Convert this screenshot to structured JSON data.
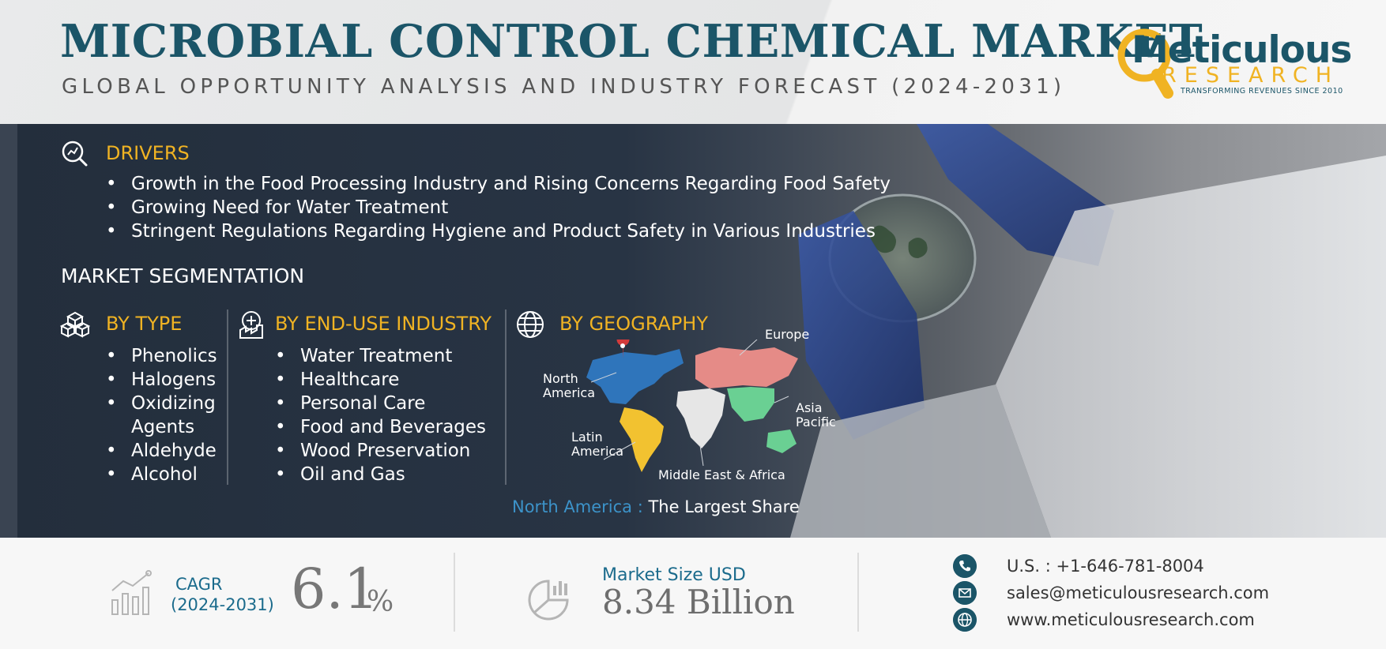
{
  "header": {
    "title": "MICROBIAL CONTROL CHEMICAL MARKET",
    "subtitle": "GLOBAL OPPORTUNITY ANALYSIS AND INDUSTRY FORECAST (2024-2031)",
    "logo": {
      "name": "Meticulous",
      "sub": "RESEARCH",
      "tagline": "TRANSFORMING REVENUES SINCE 2010"
    }
  },
  "drivers": {
    "title": "DRIVERS",
    "items": [
      "Growth in the Food Processing Industry and Rising Concerns Regarding Food Safety",
      "Growing Need for Water Treatment",
      "Stringent Regulations Regarding Hygiene and Product Safety in Various Industries"
    ]
  },
  "segmentation": {
    "title": "MARKET SEGMENTATION",
    "by_type": {
      "title": "BY TYPE",
      "items": [
        "Phenolics",
        "Halogens",
        "Oxidizing",
        "Agents",
        "Aldehyde",
        "Alcohol"
      ]
    },
    "by_end_use": {
      "title": "BY END-USE INDUSTRY",
      "items": [
        "Water Treatment",
        "Healthcare",
        "Personal Care",
        "Food and Beverages",
        "Wood Preservation",
        "Oil and Gas"
      ]
    },
    "by_geography": {
      "title": "BY GEOGRAPHY",
      "regions": {
        "europe": "Europe",
        "north_america_1": "North",
        "north_america_2": "America",
        "asia_pacific_1": "Asia",
        "asia_pacific_2": "Pacific",
        "latin_america_1": "Latin",
        "latin_america_2": "America",
        "mea": "Middle East & Africa"
      },
      "largest_share_region": "North America : ",
      "largest_share_text": "The Largest Share"
    }
  },
  "footer": {
    "cagr_label": "CAGR",
    "cagr_period": "(2024-2031)",
    "cagr_value": "6.1",
    "cagr_unit": "%",
    "market_size_label": "Market Size USD",
    "market_size_value": "8.34 Billion",
    "phone": "U.S. : +1-646-781-8004",
    "email": "sales@meticulousresearch.com",
    "website": "www.meticulousresearch.com"
  },
  "colors": {
    "accent": "#f0b323",
    "brand": "#1b5568",
    "band": "#283444"
  },
  "icons": [
    "drivers-icon",
    "type-icon",
    "end-use-icon",
    "globe-icon",
    "cagr-chart-icon",
    "market-size-icon",
    "phone-icon",
    "email-icon",
    "web-icon"
  ]
}
